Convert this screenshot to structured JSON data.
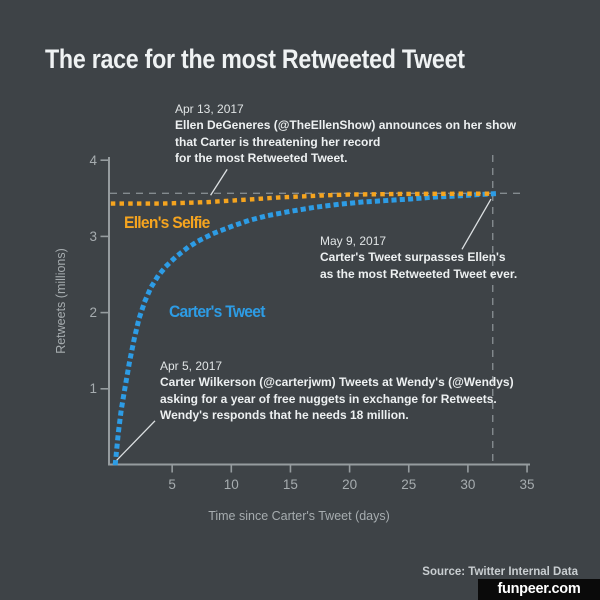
{
  "header": {
    "title": "The race for the most Retweeted Tweet"
  },
  "chart": {
    "ylabel": "Retweets (millions)",
    "xlabel": "Time since Carter's Tweet (days)",
    "series_labels": {
      "ellen": "Ellen's Selfie",
      "carter": "Carter's Tweet"
    }
  },
  "chart_data": {
    "type": "line",
    "title": "The race for the most Retweeted Tweet",
    "xlabel": "Time since Carter's Tweet (days)",
    "ylabel": "Retweets (millions)",
    "xlim": [
      0,
      35.5
    ],
    "ylim": [
      0,
      4.1
    ],
    "x_ticks": [
      5,
      10,
      15,
      20,
      25,
      30,
      35
    ],
    "y_ticks": [
      4,
      3,
      2,
      1
    ],
    "grid": false,
    "line_style": "dotted",
    "legend_position": "inline-labels",
    "series": [
      {
        "name": "Carter's Tweet",
        "color": "#2D9CE5",
        "points": [
          [
            0.2,
            0.03
          ],
          [
            0.45,
            0.42
          ],
          [
            0.7,
            0.73
          ],
          [
            1,
            1.0
          ],
          [
            1.4,
            1.36
          ],
          [
            1.8,
            1.66
          ],
          [
            2.2,
            1.92
          ],
          [
            2.7,
            2.15
          ],
          [
            3.2,
            2.33
          ],
          [
            3.8,
            2.48
          ],
          [
            4.5,
            2.61
          ],
          [
            5.3,
            2.73
          ],
          [
            6.2,
            2.84
          ],
          [
            7.2,
            2.94
          ],
          [
            8.5,
            3.04
          ],
          [
            10,
            3.13
          ],
          [
            11.5,
            3.21
          ],
          [
            13,
            3.27
          ],
          [
            15,
            3.33
          ],
          [
            17,
            3.38
          ],
          [
            19,
            3.42
          ],
          [
            21,
            3.45
          ],
          [
            23,
            3.47
          ],
          [
            25,
            3.49
          ],
          [
            27,
            3.515
          ],
          [
            29,
            3.53
          ],
          [
            31,
            3.55
          ],
          [
            32.3,
            3.56
          ]
        ]
      },
      {
        "name": "Ellen's Selfie",
        "color": "#F5A41F",
        "points": [
          [
            0,
            3.43
          ],
          [
            2,
            3.43
          ],
          [
            4,
            3.43
          ],
          [
            6,
            3.44
          ],
          [
            8,
            3.45
          ],
          [
            10,
            3.47
          ],
          [
            12,
            3.49
          ],
          [
            14,
            3.51
          ],
          [
            16,
            3.525
          ],
          [
            18,
            3.54
          ],
          [
            20,
            3.55
          ],
          [
            22,
            3.553
          ],
          [
            24,
            3.556
          ],
          [
            26,
            3.558
          ],
          [
            28,
            3.559
          ],
          [
            30,
            3.56
          ],
          [
            32.3,
            3.56
          ]
        ]
      }
    ],
    "reference_lines": {
      "horizontal_y": 3.565,
      "vertical_x": 32.1
    },
    "callouts": [
      {
        "name": "apr13-leader",
        "from_xy": [
          9.65,
          3.88
        ],
        "to_xy": [
          8.25,
          3.54
        ]
      },
      {
        "name": "may9-leader",
        "from_xy": [
          29.5,
          2.83
        ],
        "to_xy": [
          31.95,
          3.49
        ]
      },
      {
        "name": "apr5-leader",
        "from_xy": [
          3.55,
          0.58
        ],
        "to_xy": [
          0.3,
          0.06
        ]
      }
    ]
  },
  "annotations": {
    "apr13": {
      "date": "Apr 13, 2017",
      "lines": [
        "Ellen DeGeneres (@TheEllenShow) announces on her show",
        "that Carter is threatening her record",
        "for the most Retweeted Tweet."
      ]
    },
    "may9": {
      "date": "May 9, 2017",
      "lines": [
        "Carter's Tweet surpasses Ellen's",
        "as the most Retweeted Tweet ever."
      ]
    },
    "apr5": {
      "date": "Apr 5, 2017",
      "lines": [
        "Carter Wilkerson (@carterjwm) Tweets at Wendy's (@Wendys)",
        "asking for a year of free nuggets in exchange for Retweets.",
        "Wendy's responds that he needs 18 million."
      ]
    }
  },
  "footer": {
    "source": "Source: Twitter Internal Data",
    "watermark": "funpeer.com"
  },
  "colors": {
    "background": "#3E4347",
    "ellen_orange": "#F5A41F",
    "carter_blue": "#2D9CE5",
    "axis": "#969C9F",
    "tick_text": "#A6ACAF",
    "annotation_text": "#EDF0F1",
    "dashed_reference": "#848B8F",
    "leader_line": "#DCE0E2",
    "source_text": "#C9CED1",
    "watermark_bg": "#0A0A0A",
    "watermark_text": "#FFFFFF"
  }
}
